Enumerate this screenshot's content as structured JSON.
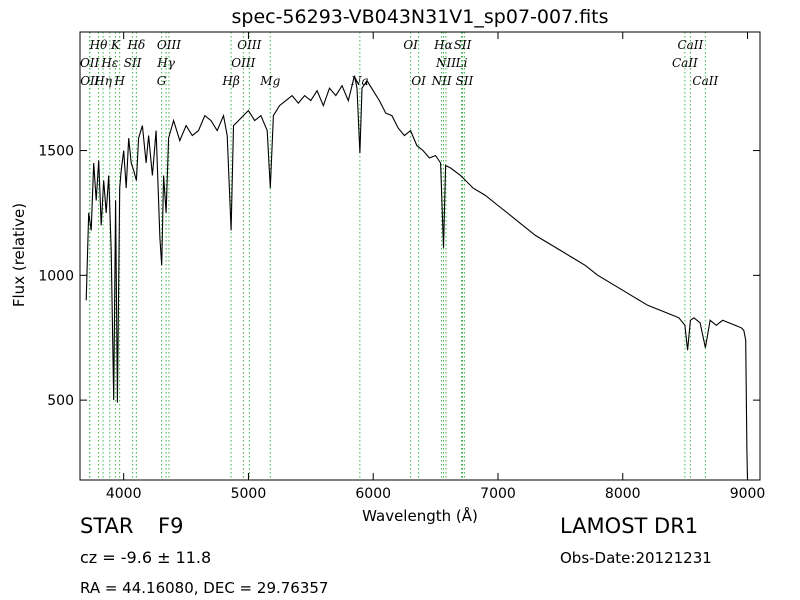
{
  "chart_data": {
    "type": "line",
    "title": "spec-56293-VB043N31V1_sp07-007.fits",
    "xlabel": "Wavelength (Å)",
    "ylabel": "Flux (relative)",
    "xlim": [
      3650,
      9100
    ],
    "ylim": [
      180,
      1975
    ],
    "x_ticks": [
      4000,
      5000,
      6000,
      7000,
      8000,
      9000
    ],
    "y_ticks": [
      500,
      1000,
      1500
    ],
    "grid": false,
    "line_color": "#000000",
    "marker_color": "#3cb44b",
    "series": [
      {
        "x": [
          3700,
          3720,
          3740,
          3760,
          3780,
          3800,
          3820,
          3840,
          3860,
          3880,
          3900,
          3920,
          3935,
          3950,
          3968,
          3980,
          4000,
          4020,
          4040,
          4060,
          4080,
          4102,
          4120,
          4150,
          4180,
          4200,
          4230,
          4260,
          4290,
          4305,
          4320,
          4340,
          4360,
          4400,
          4450,
          4500,
          4550,
          4600,
          4650,
          4700,
          4750,
          4800,
          4830,
          4861,
          4880,
          4920,
          4960,
          5000,
          5050,
          5100,
          5150,
          5175,
          5200,
          5250,
          5300,
          5350,
          5400,
          5450,
          5500,
          5550,
          5600,
          5650,
          5700,
          5750,
          5800,
          5850,
          5870,
          5893,
          5910,
          5950,
          6000,
          6050,
          6100,
          6150,
          6200,
          6250,
          6300,
          6350,
          6400,
          6450,
          6500,
          6540,
          6563,
          6580,
          6620,
          6700,
          6800,
          6900,
          7000,
          7100,
          7200,
          7300,
          7400,
          7500,
          7600,
          7700,
          7800,
          7900,
          8000,
          8100,
          8200,
          8300,
          8400,
          8450,
          8498,
          8520,
          8542,
          8570,
          8620,
          8662,
          8700,
          8750,
          8800,
          8850,
          8900,
          8950,
          8970,
          8985,
          8995,
          9000
        ],
        "y": [
          900,
          1250,
          1180,
          1450,
          1300,
          1460,
          1200,
          1380,
          1250,
          1400,
          1100,
          500,
          1300,
          490,
          1350,
          1420,
          1500,
          1350,
          1550,
          1450,
          1420,
          1380,
          1550,
          1600,
          1450,
          1560,
          1400,
          1580,
          1150,
          1040,
          1400,
          1250,
          1550,
          1620,
          1540,
          1600,
          1560,
          1580,
          1640,
          1620,
          1580,
          1640,
          1560,
          1180,
          1600,
          1620,
          1640,
          1660,
          1620,
          1640,
          1580,
          1350,
          1640,
          1680,
          1700,
          1720,
          1690,
          1720,
          1700,
          1740,
          1680,
          1750,
          1720,
          1760,
          1700,
          1800,
          1750,
          1490,
          1750,
          1780,
          1740,
          1700,
          1650,
          1640,
          1590,
          1560,
          1580,
          1520,
          1500,
          1470,
          1480,
          1450,
          1110,
          1440,
          1430,
          1400,
          1350,
          1320,
          1280,
          1240,
          1200,
          1160,
          1130,
          1100,
          1070,
          1040,
          1000,
          970,
          940,
          910,
          880,
          860,
          840,
          830,
          800,
          700,
          820,
          830,
          810,
          710,
          820,
          800,
          820,
          810,
          800,
          790,
          780,
          740,
          300,
          180
        ]
      }
    ],
    "lines": [
      {
        "label": "Hθ",
        "x": 3798,
        "row": 1
      },
      {
        "label": "K",
        "x": 3934,
        "row": 1
      },
      {
        "label": "Hδ",
        "x": 4102,
        "row": 1
      },
      {
        "label": "OIII",
        "x": 4363,
        "row": 1
      },
      {
        "label": "OIII",
        "x": 5007,
        "row": 1
      },
      {
        "label": "OI",
        "x": 6300,
        "row": 1
      },
      {
        "label": "Hα",
        "x": 6563,
        "row": 1
      },
      {
        "label": "SII",
        "x": 6716,
        "row": 1
      },
      {
        "label": "CaII",
        "x": 8542,
        "row": 1
      },
      {
        "label": "OII",
        "x": 3727,
        "row": 2
      },
      {
        "label": "Hε",
        "x": 3889,
        "row": 2
      },
      {
        "label": "SII",
        "x": 4072,
        "row": 2
      },
      {
        "label": "Hγ",
        "x": 4340,
        "row": 2
      },
      {
        "label": "OIII",
        "x": 4959,
        "row": 2
      },
      {
        "label": "NII",
        "x": 6583,
        "row": 2
      },
      {
        "label": "Li",
        "x": 6708,
        "row": 2
      },
      {
        "label": "CaII",
        "x": 8498,
        "row": 2
      },
      {
        "label": "OII",
        "x": 3729,
        "row": 3
      },
      {
        "label": "Hη",
        "x": 3835,
        "row": 3
      },
      {
        "label": "H",
        "x": 3968,
        "row": 3
      },
      {
        "label": "G",
        "x": 4304,
        "row": 3
      },
      {
        "label": "Hβ",
        "x": 4861,
        "row": 3
      },
      {
        "label": "Mg",
        "x": 5175,
        "row": 3
      },
      {
        "label": "Na",
        "x": 5893,
        "row": 3
      },
      {
        "label": "OI",
        "x": 6364,
        "row": 3
      },
      {
        "label": "NII",
        "x": 6548,
        "row": 3
      },
      {
        "label": "SII",
        "x": 6731,
        "row": 3
      },
      {
        "label": "CaII",
        "x": 8662,
        "row": 3
      }
    ]
  },
  "info": {
    "class_label": "STAR",
    "subclass_label": "F9",
    "survey": "LAMOST DR1",
    "cz": "cz = -9.6  ± 11.8",
    "obs_date": "Obs-Date:20121231",
    "coords": "RA = 44.16080, DEC = 29.76357"
  }
}
